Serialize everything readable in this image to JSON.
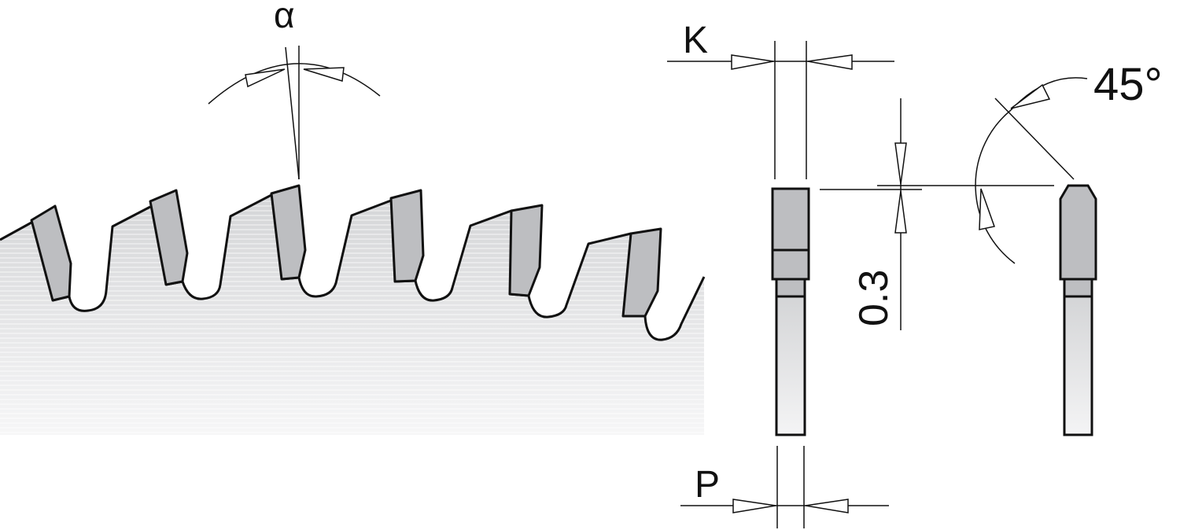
{
  "labels": {
    "rake_angle": "α",
    "kerf": "K",
    "plate": "P",
    "step": "0.3",
    "bevel": "45°"
  },
  "colors": {
    "carbide": "#bdbec1",
    "blade_light": "#f2f2f3",
    "blade_dark": "#d6d7d9",
    "line": "#111111"
  }
}
